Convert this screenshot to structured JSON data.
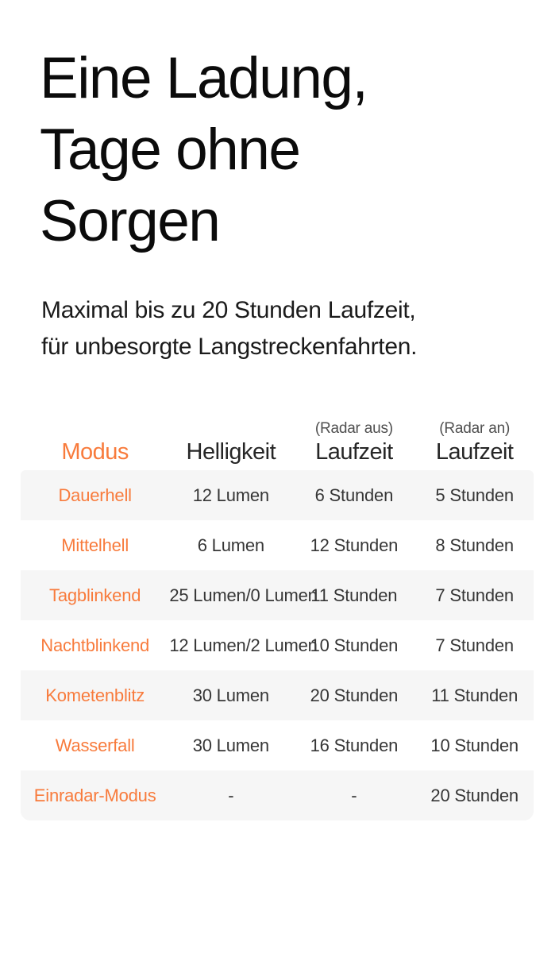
{
  "hero": {
    "heading_lines": [
      "Eine Ladung,",
      "Tage ohne",
      "Sorgen"
    ],
    "subtitle_lines": [
      "Maximal bis zu 20 Stunden Laufzeit,",
      "für unbesorgte Langstreckenfahrten."
    ]
  },
  "colors": {
    "accent_orange": "#f87b3c",
    "row_alt_background": "#f6f6f6",
    "heading_text": "#0b0b0b",
    "body_text": "#363636",
    "muted_label_text": "#4f4f4f"
  },
  "table": {
    "columns": [
      {
        "label": "Modus",
        "sublabel": ""
      },
      {
        "label": "Helligkeit",
        "sublabel": ""
      },
      {
        "label": "Laufzeit",
        "sublabel": "(Radar aus)"
      },
      {
        "label": "Laufzeit",
        "sublabel": "(Radar an)"
      }
    ],
    "rows": [
      {
        "modus": "Dauerhell",
        "helligkeit": "12 Lumen",
        "radar_aus": "6 Stunden",
        "radar_an": "5 Stunden"
      },
      {
        "modus": "Mittelhell",
        "helligkeit": "6 Lumen",
        "radar_aus": "12 Stunden",
        "radar_an": "8 Stunden"
      },
      {
        "modus": "Tagblinkend",
        "helligkeit": "25 Lumen/0 Lumen",
        "radar_aus": "11 Stunden",
        "radar_an": "7 Stunden"
      },
      {
        "modus": "Nachtblinkend",
        "helligkeit": "12 Lumen/2 Lumen",
        "radar_aus": "10 Stunden",
        "radar_an": "7 Stunden"
      },
      {
        "modus": "Kometenblitz",
        "helligkeit": "30 Lumen",
        "radar_aus": "20 Stunden",
        "radar_an": "11 Stunden"
      },
      {
        "modus": "Wasserfall",
        "helligkeit": "30 Lumen",
        "radar_aus": "16 Stunden",
        "radar_an": "10 Stunden"
      },
      {
        "modus": "Einradar-Modus",
        "helligkeit": "-",
        "radar_aus": "-",
        "radar_an": "20 Stunden"
      }
    ]
  }
}
